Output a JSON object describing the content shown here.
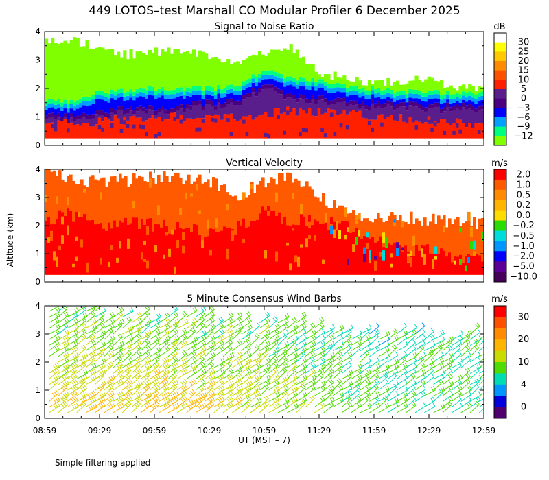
{
  "figure": {
    "title": "449 LOTOS–test Marshall CO Modular Profiler  6 December 2025",
    "footnote": "Simple filtering applied",
    "y_axis_label": "Altitude (km)",
    "x_axis_label": "UT  (MST – 7)",
    "x_tick_labels": [
      "08:59",
      "09:29",
      "09:59",
      "10:29",
      "10:59",
      "11:29",
      "11:59",
      "12:29",
      "12:59"
    ],
    "y_tick_labels": [
      "0",
      "1",
      "2",
      "3",
      "4"
    ]
  },
  "chart_data": [
    {
      "type": "heatmap",
      "title": "Signal to Noise Ratio",
      "units": "dB",
      "xlabel": "UT  (MST – 7)",
      "ylabel": "Altitude (km)",
      "xlim": [
        "08:59",
        "12:59"
      ],
      "ylim": [
        0,
        4
      ],
      "min_altitude_km": 0.25,
      "colorbar": {
        "labels": [
          "30",
          "25",
          "20",
          "15",
          "10",
          "5",
          "0",
          "−3",
          "−6",
          "−9",
          "−12"
        ],
        "colors": [
          "#ffffff",
          "#ffff00",
          "#ffc800",
          "#ff8c00",
          "#ff5000",
          "#ff2000",
          "#5a1e8c",
          "#4b0082",
          "#0000ff",
          "#00a0ff",
          "#00ff80",
          "#80ff00"
        ]
      },
      "profile": {
        "time_hours": [
          0,
          0.25,
          0.5,
          0.75,
          1.0,
          1.25,
          1.5,
          1.75,
          2.0,
          2.25,
          2.5,
          2.75,
          3.0,
          3.25,
          3.5,
          3.75,
          4.0
        ],
        "red_top_km": [
          0.7,
          0.8,
          0.85,
          0.9,
          0.95,
          1.0,
          1.0,
          1.0,
          1.1,
          1.2,
          1.2,
          1.1,
          1.0,
          1.0,
          0.9,
          0.8,
          0.7
        ],
        "purple_top_km": [
          1.1,
          1.0,
          1.2,
          1.3,
          1.3,
          1.4,
          1.5,
          1.6,
          2.1,
          1.8,
          1.7,
          1.6,
          1.5,
          1.5,
          1.4,
          1.4,
          1.3
        ],
        "blue_top_km": [
          1.3,
          1.2,
          1.6,
          1.6,
          1.7,
          1.7,
          1.7,
          1.8,
          2.3,
          2.1,
          2.0,
          1.8,
          1.7,
          1.6,
          1.6,
          1.5,
          1.5
        ],
        "echo_top_km": [
          3.7,
          3.7,
          3.4,
          3.2,
          3.3,
          3.3,
          3.1,
          2.9,
          3.2,
          3.4,
          2.6,
          2.3,
          2.2,
          2.3,
          2.3,
          2.0,
          2.0
        ]
      }
    },
    {
      "type": "heatmap",
      "title": "Vertical Velocity",
      "units": "m/s",
      "xlabel": "UT  (MST – 7)",
      "ylabel": "Altitude (km)",
      "xlim": [
        "08:59",
        "12:59"
      ],
      "ylim": [
        0,
        4
      ],
      "min_altitude_km": 0.25,
      "colorbar": {
        "labels": [
          "2.0",
          "1.0",
          "0.5",
          "0.2",
          "0.0",
          "−0.2",
          "−0.5",
          "−1.0",
          "−2.0",
          "−5.0",
          "−10.0"
        ],
        "colors": [
          "#ff0000",
          "#ff5a00",
          "#ff8c00",
          "#ffb400",
          "#ffdc00",
          "#28dc00",
          "#00dcdc",
          "#0096ff",
          "#0000ff",
          "#5a0096",
          "#46005a"
        ]
      },
      "profile": {
        "time_hours": [
          0,
          0.25,
          0.5,
          0.75,
          1.0,
          1.25,
          1.5,
          1.75,
          2.0,
          2.25,
          2.5,
          2.75,
          3.0,
          3.25,
          3.5,
          3.75,
          4.0
        ],
        "core_top_km": [
          2.2,
          2.4,
          2.0,
          2.2,
          2.0,
          1.9,
          1.8,
          1.9,
          2.5,
          2.2,
          2.1,
          2.0,
          1.6,
          1.2,
          1.1,
          0.9,
          0.8
        ],
        "echo_top_km": [
          4.0,
          3.6,
          3.6,
          3.6,
          3.7,
          3.7,
          3.6,
          3.0,
          3.6,
          3.8,
          3.0,
          2.5,
          2.3,
          2.3,
          2.2,
          2.1,
          2.1
        ]
      }
    },
    {
      "type": "scatter",
      "title": "5 Minute Consensus Wind Barbs",
      "units": "m/s",
      "xlabel": "UT  (MST – 7)",
      "ylabel": "Altitude (km)",
      "xlim": [
        "08:59",
        "12:59"
      ],
      "ylim": [
        0,
        4
      ],
      "interval_minutes": 5,
      "colorbar": {
        "labels": [
          "30",
          "20",
          "10",
          "4",
          "0"
        ],
        "colors": [
          "#ff0000",
          "#ff5000",
          "#ff8c00",
          "#ffb400",
          "#c8dc00",
          "#50dc00",
          "#00dcb4",
          "#0096ff",
          "#0000dc",
          "#50006e"
        ]
      },
      "wind": {
        "direction_deg": "northwest",
        "speed_ms": {
          "time_hours": [
            0,
            1.0,
            2.0,
            3.0,
            4.0
          ],
          "at_0p5km": [
            15,
            17,
            13,
            8,
            8
          ],
          "at_2p5km": [
            11,
            11,
            10,
            7,
            8
          ],
          "at_4km": [
            9,
            9,
            9,
            6,
            7
          ]
        },
        "echo_top_km": [
          4.0,
          3.8,
          3.6,
          3.2,
          3.1
        ]
      }
    }
  ]
}
